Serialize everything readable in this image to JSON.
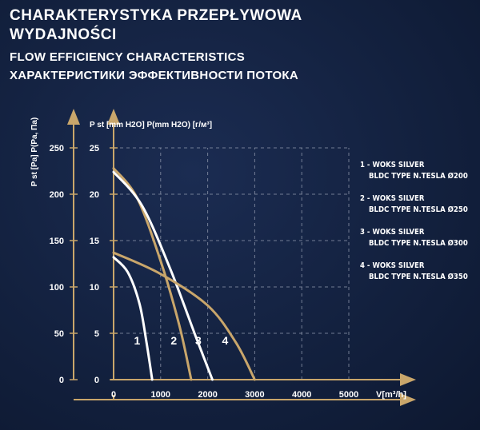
{
  "title": {
    "line1": "CHARAKTERYSTYKA PRZEPŁYWOWA",
    "line2": "WYDAJNOŚCI",
    "line3": "FLOW EFFICIENCY CHARACTERISTICS",
    "line4": "ХАРАКТЕРИСТИКИ ЭФФЕКТИВНОСТИ ПОТОКА"
  },
  "colors": {
    "white_curve": "#ffffff",
    "gold_curve": "#c9a66b",
    "axis": "#c9a66b",
    "grid": "#8a93a8"
  },
  "chart_data": {
    "type": "line",
    "x_label": "V[m³/h]",
    "y_label_left": "P st [Pa] P(Pa, Па)",
    "y_label_right": "P st [mm H2O] P(mm H2O) [г/м³]",
    "x_ticks": [
      "0",
      "1000",
      "2000",
      "3000",
      "4000",
      "5000"
    ],
    "y_ticks_pa": [
      "0",
      "50",
      "100",
      "150",
      "200",
      "250"
    ],
    "y_ticks_mm": [
      "0",
      "5",
      "10",
      "15",
      "20",
      "25"
    ],
    "xlim": [
      0,
      5000
    ],
    "ylim_pa": [
      0,
      250
    ],
    "grid": true,
    "legend_position": "right",
    "series": [
      {
        "name": "1 - WOKS SILVER BLDC TYPE N.TESLA Ø200",
        "label": "1",
        "color": "white",
        "points": [
          [
            0,
            132
          ],
          [
            300,
            116
          ],
          [
            550,
            82
          ],
          [
            700,
            40
          ],
          [
            820,
            0
          ]
        ]
      },
      {
        "name": "2 - WOKS SILVER BLDC TYPE N.TESLA Ø250",
        "label": "2",
        "color": "gold",
        "points": [
          [
            0,
            228
          ],
          [
            500,
            196
          ],
          [
            1000,
            128
          ],
          [
            1400,
            58
          ],
          [
            1650,
            0
          ]
        ]
      },
      {
        "name": "3 - WOKS SILVER BLDC TYPE N.TESLA Ø300",
        "label": "3",
        "color": "white",
        "points": [
          [
            0,
            224
          ],
          [
            600,
            188
          ],
          [
            1200,
            120
          ],
          [
            1750,
            46
          ],
          [
            2100,
            0
          ]
        ]
      },
      {
        "name": "4 - WOKS SILVER BLDC TYPE N.TESLA Ø350",
        "label": "4",
        "color": "gold",
        "points": [
          [
            0,
            137
          ],
          [
            1000,
            114
          ],
          [
            2000,
            80
          ],
          [
            2600,
            40
          ],
          [
            3000,
            0
          ]
        ]
      }
    ],
    "curve_labels": [
      {
        "text": "1",
        "x": 500,
        "y": 38
      },
      {
        "text": "2",
        "x": 1280,
        "y": 38
      },
      {
        "text": "3",
        "x": 1800,
        "y": 38
      },
      {
        "text": "4",
        "x": 2370,
        "y": 38
      }
    ]
  },
  "legend": [
    {
      "line1": "1 - WOKS SILVER",
      "line2": "BLDC TYPE N.TESLA Ø200"
    },
    {
      "line1": "2 - WOKS SILVER",
      "line2": "BLDC TYPE N.TESLA Ø250"
    },
    {
      "line1": "3 - WOKS SILVER",
      "line2": "BLDC TYPE N.TESLA Ø300"
    },
    {
      "line1": "4 - WOKS SILVER",
      "line2": "BLDC TYPE N.TESLA Ø350"
    }
  ]
}
